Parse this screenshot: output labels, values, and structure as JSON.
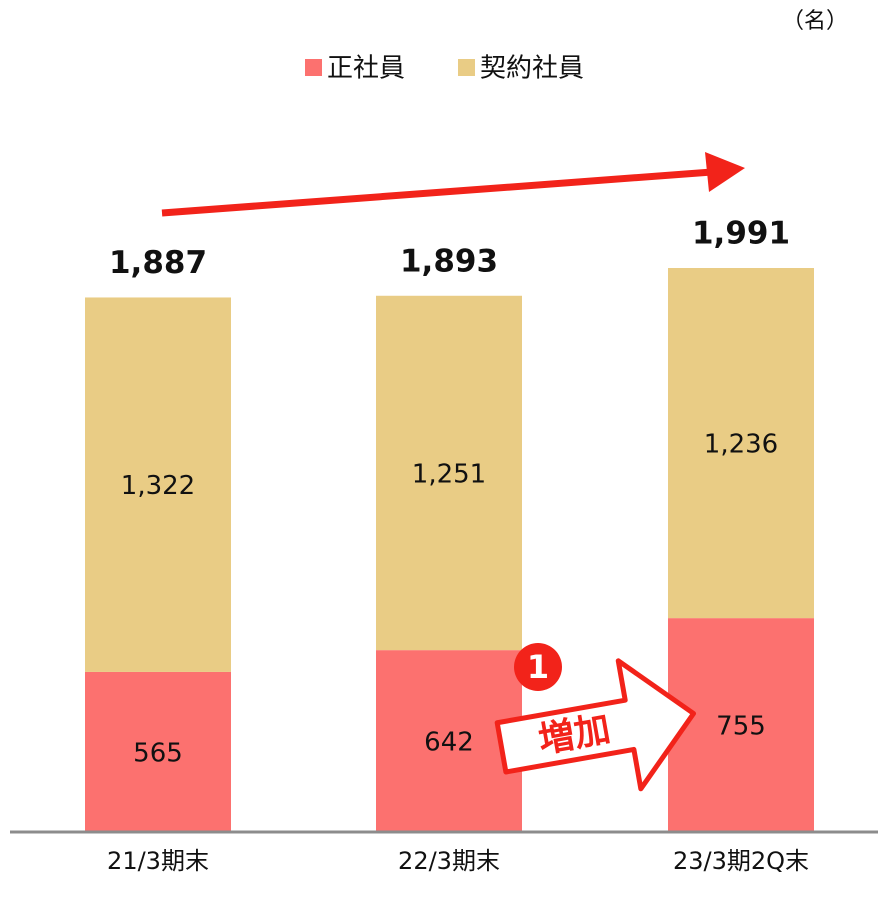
{
  "chart_data": {
    "type": "stacked_bar",
    "unit": "（名）",
    "categories": [
      "21/3期末",
      "22/3期末",
      "23/3期2Q末"
    ],
    "series": [
      {
        "name": "正社員",
        "color": "#fc716f",
        "values": [
          565,
          642,
          755
        ]
      },
      {
        "name": "契約社員",
        "color": "#e9cc85",
        "values": [
          1322,
          1251,
          1236
        ],
        "value_labels": [
          "1,322",
          "1,251",
          "1,236"
        ]
      }
    ],
    "totals": [
      1887,
      1893,
      1991
    ],
    "total_labels": [
      "1,887",
      "1,893",
      "1,991"
    ],
    "annotations": [
      "1",
      "増加"
    ]
  }
}
